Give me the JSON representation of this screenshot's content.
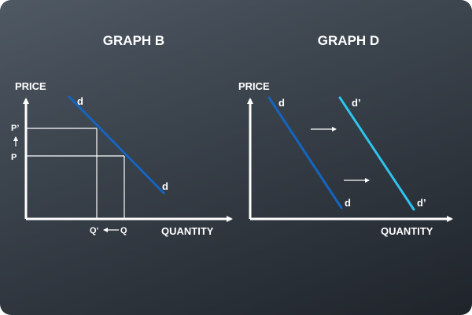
{
  "graphs": {
    "b": {
      "title": "GRAPH B",
      "y_axis_label": "PRICE",
      "x_axis_label": "QUANTITY",
      "curve_label_top": "d",
      "curve_label_bottom": "d",
      "price_new": "P’",
      "price_old": "P",
      "qty_new": "Q‘",
      "qty_old": "Q"
    },
    "d": {
      "title": "GRAPH D",
      "y_axis_label": "PRICE",
      "x_axis_label": "QUANTITY",
      "curve1_label_top": "d",
      "curve1_label_bottom": "d",
      "curve2_label_top": "d’",
      "curve2_label_bottom": "d’"
    }
  },
  "colors": {
    "curve_original": "#1565c0",
    "curve_shifted": "#2ec4f0",
    "axes": "#ffffff",
    "guides": "#ffffff",
    "background_top": "#4f5964",
    "background_bottom": "#1f242b"
  }
}
